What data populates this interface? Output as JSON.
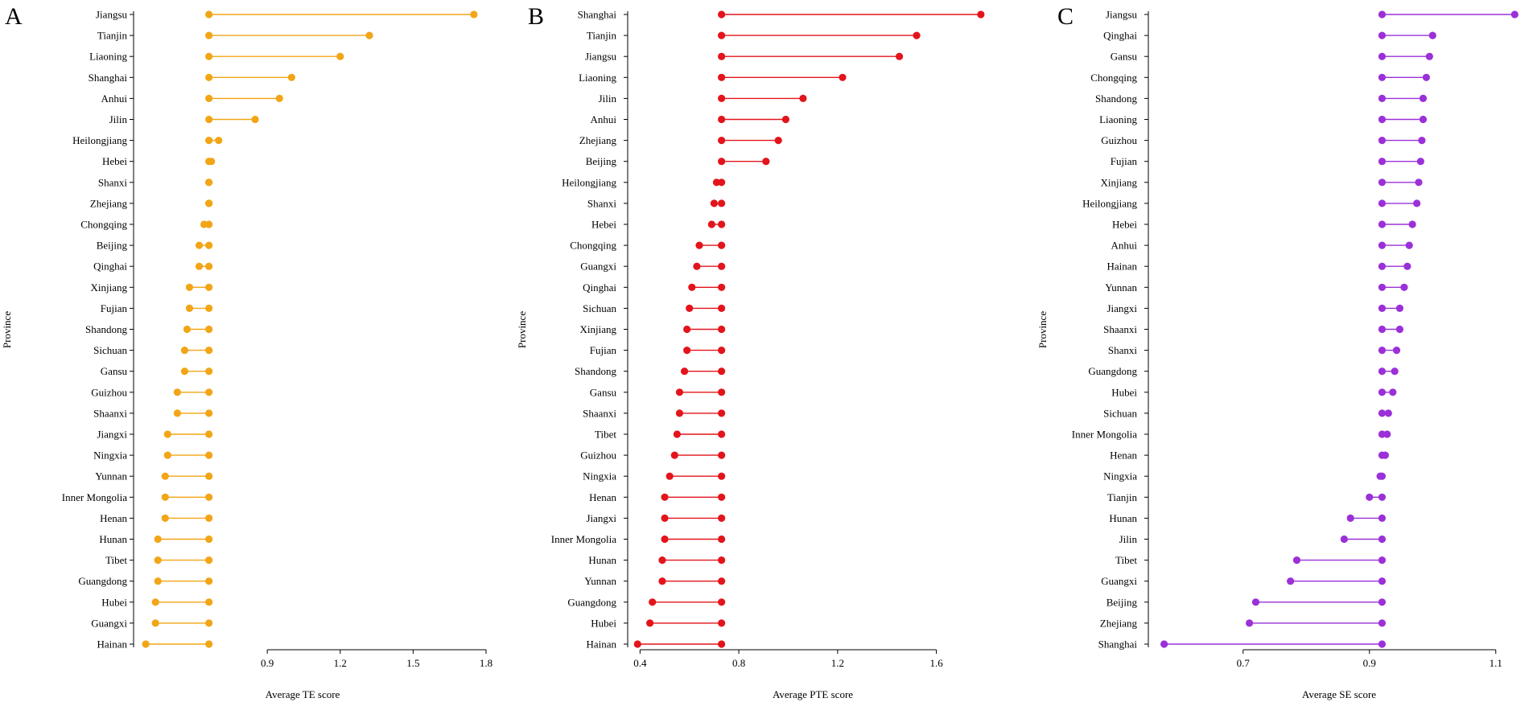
{
  "chart_data": [
    {
      "type": "lollipop",
      "panel_label": "A",
      "title": "",
      "xlabel": "Average TE score",
      "ylabel": "Province",
      "color": "#f2a516",
      "xlim": [
        0.35,
        1.8
      ],
      "xticks": [
        0.9,
        1.2,
        1.5,
        1.8
      ],
      "xtick_labels": [
        "0.9",
        "1.2",
        "1.5",
        "1.8"
      ],
      "baseline": 0.66,
      "categories": [
        "Jiangsu",
        "Tianjin",
        "Liaoning",
        "Shanghai",
        "Anhui",
        "Jilin",
        "Heilongjiang",
        "Hebei",
        "Shanxi",
        "Zhejiang",
        "Chongqing",
        "Beijing",
        "Qinghai",
        "Xinjiang",
        "Fujian",
        "Shandong",
        "Sichuan",
        "Gansu",
        "Guizhou",
        "Shaanxi",
        "Jiangxi",
        "Ningxia",
        "Yunnan",
        "Inner Mongolia",
        "Henan",
        "Hunan",
        "Tibet",
        "Guangdong",
        "Hubei",
        "Guangxi",
        "Hainan"
      ],
      "values": [
        1.75,
        1.32,
        1.2,
        1.0,
        0.95,
        0.85,
        0.7,
        0.67,
        0.66,
        0.66,
        0.64,
        0.62,
        0.62,
        0.58,
        0.58,
        0.57,
        0.56,
        0.56,
        0.53,
        0.53,
        0.49,
        0.49,
        0.48,
        0.48,
        0.48,
        0.45,
        0.45,
        0.45,
        0.44,
        0.44,
        0.4
      ]
    },
    {
      "type": "lollipop",
      "panel_label": "B",
      "title": "",
      "xlabel": "Average PTE score",
      "ylabel": "Province",
      "color": "#e3141b",
      "xlim": [
        0.35,
        1.8
      ],
      "xticks": [
        0.4,
        0.8,
        1.2,
        1.6
      ],
      "xtick_labels": [
        "0.4",
        "0.8",
        "1.2",
        "1.6"
      ],
      "baseline": 0.73,
      "categories": [
        "Shanghai",
        "Tianjin",
        "Jiangsu",
        "Liaoning",
        "Jilin",
        "Anhui",
        "Zhejiang",
        "Beijing",
        "Heilongjiang",
        "Shanxi",
        "Hebei",
        "Chongqing",
        "Guangxi",
        "Qinghai",
        "Sichuan",
        "Xinjiang",
        "Fujian",
        "Shandong",
        "Gansu",
        "Shaanxi",
        "Tibet",
        "Guizhou",
        "Ningxia",
        "Henan",
        "Jiangxi",
        "Inner Mongolia",
        "Hunan",
        "Yunnan",
        "Guangdong",
        "Hubei",
        "Hainan"
      ],
      "values": [
        1.78,
        1.52,
        1.45,
        1.22,
        1.06,
        0.99,
        0.96,
        0.91,
        0.71,
        0.7,
        0.69,
        0.64,
        0.63,
        0.61,
        0.6,
        0.59,
        0.59,
        0.58,
        0.56,
        0.56,
        0.55,
        0.54,
        0.52,
        0.5,
        0.5,
        0.5,
        0.49,
        0.49,
        0.45,
        0.44,
        0.39
      ]
    },
    {
      "type": "lollipop",
      "panel_label": "C",
      "title": "",
      "xlabel": "Average SE score",
      "ylabel": "Province",
      "color": "#9b30d9",
      "xlim": [
        0.55,
        1.15
      ],
      "xticks": [
        0.7,
        0.9,
        1.1
      ],
      "xtick_labels": [
        "0.7",
        "0.9",
        "1.1"
      ],
      "baseline": 0.92,
      "categories": [
        "Jiangsu",
        "Qinghai",
        "Gansu",
        "Chongqing",
        "Shandong",
        "Liaoning",
        "Guizhou",
        "Fujian",
        "Xinjiang",
        "Heilongjiang",
        "Hebei",
        "Anhui",
        "Hainan",
        "Yunnan",
        "Jiangxi",
        "Shaanxi",
        "Shanxi",
        "Guangdong",
        "Hubei",
        "Sichuan",
        "Inner Mongolia",
        "Henan",
        "Ningxia",
        "Tianjin",
        "Hunan",
        "Jilin",
        "Tibet",
        "Guangxi",
        "Beijing",
        "Zhejiang",
        "Shanghai"
      ],
      "values": [
        1.13,
        1.0,
        0.995,
        0.99,
        0.985,
        0.985,
        0.983,
        0.981,
        0.978,
        0.975,
        0.968,
        0.963,
        0.96,
        0.955,
        0.948,
        0.948,
        0.943,
        0.94,
        0.937,
        0.93,
        0.928,
        0.925,
        0.917,
        0.9,
        0.87,
        0.86,
        0.785,
        0.775,
        0.72,
        0.71,
        0.575
      ]
    }
  ]
}
